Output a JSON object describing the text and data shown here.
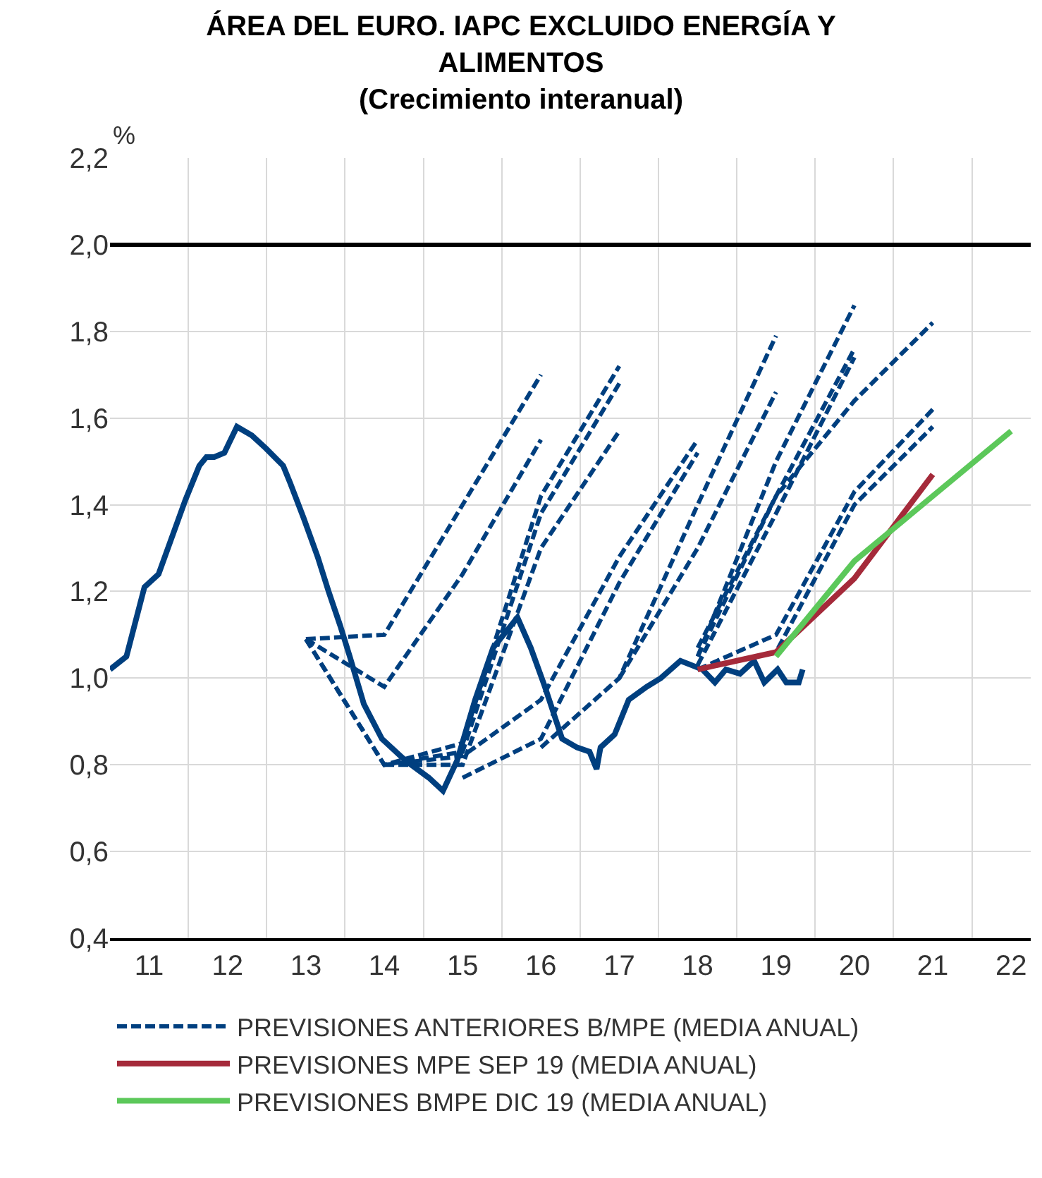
{
  "chart_data": {
    "type": "line",
    "title": "ÁREA DEL EURO. IAPC EXCLUIDO ENERGÍA Y ALIMENTOS",
    "subtitle": "(Crecimiento interanual)",
    "ylabel": "%",
    "xlim": [
      11,
      22.75
    ],
    "xticks": [
      {
        "value": 12,
        "label": null
      },
      {
        "value": 13,
        "label": null
      },
      {
        "value": 14,
        "label": null
      },
      {
        "value": 15,
        "label": null
      },
      {
        "value": 16,
        "label": null
      },
      {
        "value": 17,
        "label": null
      },
      {
        "value": 18,
        "label": null
      },
      {
        "value": 19,
        "label": null
      },
      {
        "value": 20,
        "label": null
      },
      {
        "value": 21,
        "label": null
      },
      {
        "value": 22,
        "label": null
      },
      {
        "value": 11.5,
        "label": "11"
      },
      {
        "value": 12.5,
        "label": "12"
      },
      {
        "value": 13.5,
        "label": "13"
      },
      {
        "value": 14.5,
        "label": "14"
      },
      {
        "value": 15.5,
        "label": "15"
      },
      {
        "value": 16.5,
        "label": "16"
      },
      {
        "value": 17.5,
        "label": "17"
      },
      {
        "value": 18.5,
        "label": "18"
      },
      {
        "value": 19.5,
        "label": "19"
      },
      {
        "value": 20.5,
        "label": "20"
      },
      {
        "value": 21.5,
        "label": "21"
      },
      {
        "value": 22.5,
        "label": "22"
      }
    ],
    "ylim": [
      0.4,
      2.2
    ],
    "yticks": [
      {
        "value": 0.4,
        "label": "0,4"
      },
      {
        "value": 0.6,
        "label": "0,6"
      },
      {
        "value": 0.8,
        "label": "0,8"
      },
      {
        "value": 1.0,
        "label": "1,0"
      },
      {
        "value": 1.2,
        "label": "1,2"
      },
      {
        "value": 1.4,
        "label": "1,4"
      },
      {
        "value": 1.6,
        "label": "1,6"
      },
      {
        "value": 1.8,
        "label": "1,8"
      },
      {
        "value": 2.0,
        "label": "2,0"
      },
      {
        "value": 2.2,
        "label": "2,2"
      }
    ],
    "grid": true,
    "legend": "bottom",
    "ref_lines": [
      {
        "axis": "y",
        "value": 2.0,
        "color": "#000000"
      }
    ],
    "series": [
      {
        "color": "#003f7f",
        "line_style": "solid",
        "x": [
          11.0,
          11.21,
          11.44,
          11.62,
          11.8,
          11.96,
          12.14,
          12.23,
          12.33,
          12.46,
          12.62,
          12.81,
          12.99,
          13.21,
          13.3,
          13.47,
          13.65,
          13.79,
          13.94,
          14.06,
          14.24,
          14.47,
          14.77,
          15.07,
          15.25,
          15.43,
          15.66,
          15.89,
          16.2,
          16.37,
          16.55,
          16.77,
          16.96,
          17.12,
          17.21,
          17.26,
          17.44,
          17.62,
          17.85,
          18.03,
          18.28,
          18.42,
          18.56,
          18.72,
          18.86,
          19.04,
          19.22,
          19.35,
          19.52,
          19.63,
          19.79,
          19.84
        ],
        "values": [
          1.02,
          1.05,
          1.21,
          1.24,
          1.33,
          1.41,
          1.49,
          1.51,
          1.51,
          1.52,
          1.58,
          1.56,
          1.53,
          1.49,
          1.45,
          1.37,
          1.28,
          1.2,
          1.12,
          1.05,
          0.94,
          0.86,
          0.81,
          0.77,
          0.74,
          0.81,
          0.95,
          1.07,
          1.14,
          1.07,
          0.98,
          0.86,
          0.84,
          0.83,
          0.79,
          0.84,
          0.87,
          0.95,
          0.98,
          1.0,
          1.04,
          1.03,
          1.02,
          0.99,
          1.02,
          1.01,
          1.04,
          0.99,
          1.02,
          0.99,
          0.99,
          1.02
        ]
      },
      {
        "name": "PREVISIONES ANTERIORES B/MPE (MEDIA ANUAL)",
        "color": "#003f7f",
        "line_style": "dashed",
        "x": [
          13.5,
          14.5,
          15.5,
          16.5
        ],
        "values": [
          1.09,
          1.1,
          1.4,
          1.7
        ]
      },
      {
        "color": "#003f7f",
        "line_style": "dashed",
        "x": [
          13.5,
          14.5,
          15.5,
          16.5
        ],
        "values": [
          1.09,
          0.98,
          1.24,
          1.55
        ]
      },
      {
        "color": "#003f7f",
        "line_style": "dashed",
        "x": [
          13.5,
          14.5,
          15.5,
          16.5,
          17.5
        ],
        "values": [
          1.09,
          0.8,
          0.85,
          1.42,
          1.72
        ]
      },
      {
        "color": "#003f7f",
        "line_style": "dashed",
        "x": [
          13.5,
          14.5,
          15.5,
          16.5,
          17.5
        ],
        "values": [
          1.09,
          0.8,
          0.83,
          1.38,
          1.68
        ]
      },
      {
        "color": "#003f7f",
        "line_style": "dashed",
        "x": [
          14.5,
          15.5,
          16.5,
          17.5
        ],
        "values": [
          0.8,
          0.8,
          1.3,
          1.57
        ]
      },
      {
        "color": "#003f7f",
        "line_style": "dashed",
        "x": [
          14.5,
          15.5,
          16.5,
          17.5,
          18.5
        ],
        "values": [
          0.8,
          0.82,
          0.95,
          1.28,
          1.55
        ]
      },
      {
        "color": "#003f7f",
        "line_style": "dashed",
        "x": [
          15.5,
          16.5,
          17.5,
          18.5
        ],
        "values": [
          0.77,
          0.86,
          1.22,
          1.52
        ]
      },
      {
        "color": "#003f7f",
        "line_style": "dashed",
        "x": [
          16.5,
          17.5,
          18.5,
          19.5
        ],
        "values": [
          0.84,
          1.0,
          1.4,
          1.79
        ]
      },
      {
        "color": "#003f7f",
        "line_style": "dashed",
        "x": [
          17.5,
          18.5,
          19.5
        ],
        "values": [
          1.0,
          1.3,
          1.66
        ]
      },
      {
        "color": "#003f7f",
        "line_style": "dashed",
        "x": [
          18.5,
          19.5,
          20.5
        ],
        "values": [
          1.05,
          1.5,
          1.86
        ]
      },
      {
        "color": "#003f7f",
        "line_style": "dashed",
        "x": [
          18.5,
          19.5,
          20.5
        ],
        "values": [
          1.07,
          1.42,
          1.76
        ]
      },
      {
        "color": "#003f7f",
        "line_style": "dashed",
        "x": [
          18.5,
          19.5,
          20.5
        ],
        "values": [
          1.03,
          1.38,
          1.74
        ]
      },
      {
        "color": "#003f7f",
        "line_style": "dashed",
        "x": [
          18.5,
          19.5,
          20.5,
          21.5
        ],
        "values": [
          1.05,
          1.42,
          1.64,
          1.82
        ]
      },
      {
        "color": "#003f7f",
        "line_style": "dashed",
        "x": [
          18.5,
          19.5,
          20.5,
          21.5
        ],
        "values": [
          1.02,
          1.1,
          1.43,
          1.62
        ]
      },
      {
        "color": "#003f7f",
        "line_style": "dashed",
        "x": [
          18.5,
          19.5,
          20.5,
          21.5
        ],
        "values": [
          1.02,
          1.06,
          1.4,
          1.58
        ]
      },
      {
        "name": "PREVISIONES MPE SEP 19 (MEDIA ANUAL)",
        "color": "#a52a3a",
        "line_style": "solid",
        "x": [
          18.5,
          19.5,
          20.5,
          21.5
        ],
        "values": [
          1.02,
          1.06,
          1.23,
          1.47
        ]
      },
      {
        "name": "PREVISIONES BMPE DIC 19 (MEDIA ANUAL)",
        "color": "#5cc85a",
        "line_style": "solid",
        "x": [
          19.5,
          20.5,
          21.5,
          22.5
        ],
        "values": [
          1.05,
          1.27,
          1.42,
          1.57
        ]
      }
    ]
  }
}
